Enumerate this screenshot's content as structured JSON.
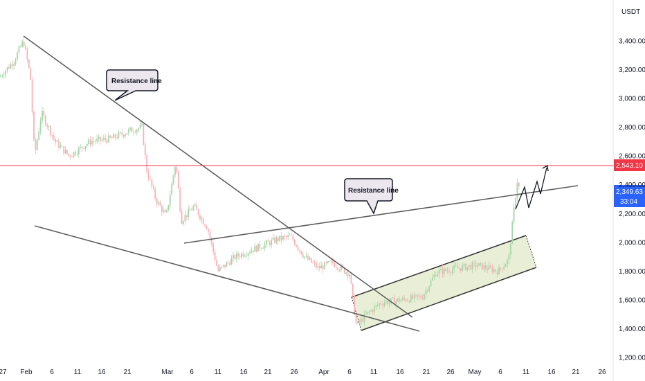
{
  "chart_data": {
    "type": "candlestick",
    "currency": "USDT",
    "y_ticks": [
      "3,400.00",
      "3,200.00",
      "3,000.00",
      "2,800.00",
      "2,600.00",
      "2,400.00",
      "2,200.00",
      "2,000.00",
      "1,800.00",
      "1,600.00",
      "1,400.00",
      "1,200.00"
    ],
    "y_tick_values": [
      3400,
      3200,
      3000,
      2800,
      2600,
      2400,
      2200,
      2000,
      1800,
      1600,
      1400,
      1200
    ],
    "ylim": [
      1200,
      3400
    ],
    "x_ticks": [
      "27",
      "Feb",
      "6",
      "11",
      "16",
      "21",
      "Mar",
      "6",
      "11",
      "16",
      "21",
      "26",
      "Apr",
      "6",
      "11",
      "16",
      "21",
      "26",
      "May",
      "6",
      "11",
      "16",
      "21",
      "26"
    ],
    "horizontal_level": {
      "value": 2543.1,
      "label": "2,543.10",
      "color": "#f23645"
    },
    "current_price": {
      "value": 2349.63,
      "label": "2,349.63",
      "countdown": "33:04",
      "color": "#2962ff"
    },
    "annotations": [
      {
        "text": "Resistance line"
      },
      {
        "text": "Resistance line"
      }
    ],
    "colors": {
      "up": "#a5d6a7",
      "down": "#f7b2b7",
      "line": "#555555",
      "channel_fill": "#dfe8c4"
    },
    "grid": false
  }
}
